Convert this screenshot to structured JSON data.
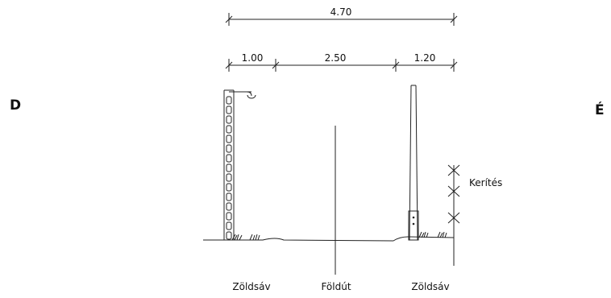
{
  "dimensions": {
    "total": "4.70",
    "segment_left": "1.00",
    "segment_middle": "2.50",
    "segment_right": "1.20"
  },
  "directions": {
    "left": "D",
    "right": "É"
  },
  "labels": {
    "fence": "Kerítés",
    "green_strip_left": "Zöldsáv",
    "dirt_road": "Földút",
    "green_strip_right": "Zöldsáv"
  }
}
